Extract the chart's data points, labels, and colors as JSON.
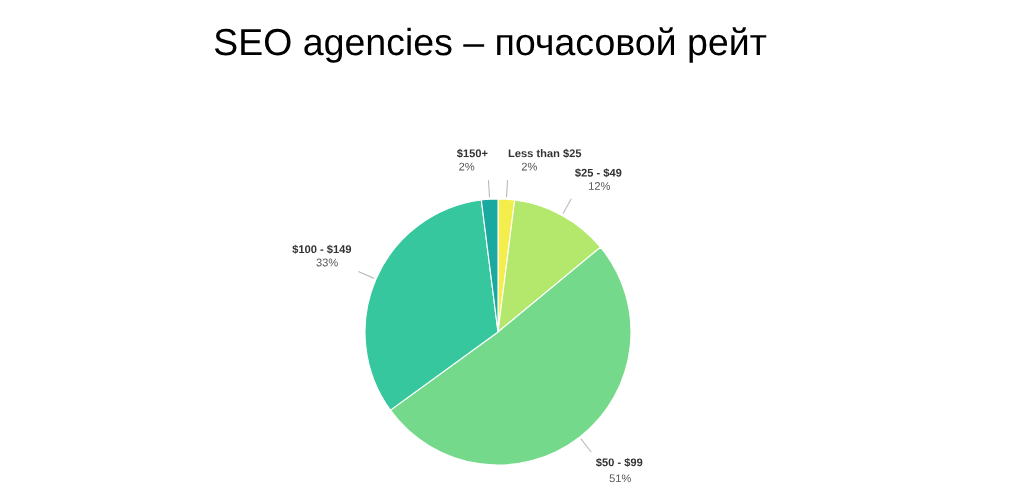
{
  "chart_data": {
    "type": "pie",
    "title": "SEO agencies – почасовой рейт",
    "categories": [
      "Less than $25",
      "$25 - $49",
      "$50 - $99",
      "$100 - $149",
      "$150+"
    ],
    "values": [
      2,
      12,
      51,
      33,
      2
    ],
    "value_labels": [
      "2%",
      "12%",
      "51%",
      "33%",
      "2%"
    ],
    "colors": [
      "#f4ee4c",
      "#b4e86c",
      "#74d98a",
      "#36c79e",
      "#1aa9a0"
    ]
  }
}
